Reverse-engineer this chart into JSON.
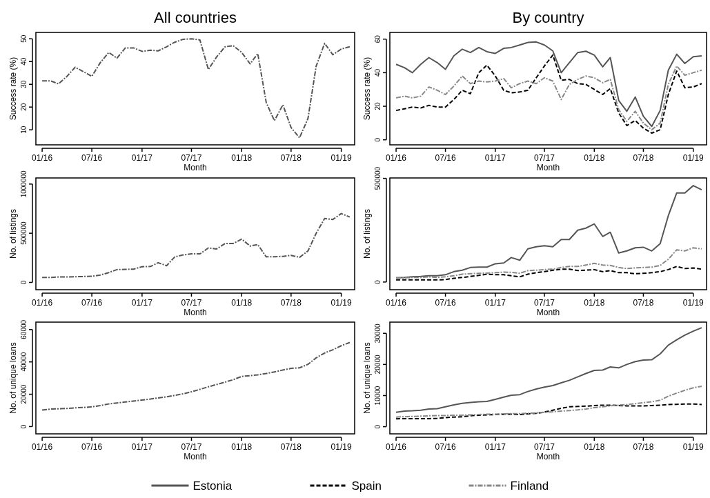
{
  "chart_data": [
    {
      "type": "line",
      "title": "All countries",
      "x": [
        "2016-01",
        "2016-02",
        "2016-03",
        "2016-04",
        "2016-05",
        "2016-06",
        "2016-07",
        "2016-08",
        "2016-09",
        "2016-10",
        "2016-11",
        "2016-12",
        "2017-01",
        "2017-02",
        "2017-03",
        "2017-04",
        "2017-05",
        "2017-06",
        "2017-07",
        "2017-08",
        "2017-09",
        "2017-10",
        "2017-11",
        "2017-12",
        "2018-01",
        "2018-02",
        "2018-03",
        "2018-04",
        "2018-05",
        "2018-06",
        "2018-07",
        "2018-08",
        "2018-09",
        "2018-10",
        "2018-11",
        "2018-12",
        "2019-01",
        "2019-02"
      ],
      "xlabel": "Month",
      "ylabel": "Success rate (%)",
      "xlim": [
        "2015-12-09",
        "2019-02-19"
      ],
      "ylim": [
        3.4,
        52.8
      ],
      "yticks": [
        10,
        20,
        30,
        40,
        50
      ],
      "xticks": [
        {
          "value": "2016-01",
          "label": "01/16"
        },
        {
          "value": "2016-07",
          "label": "07/16"
        },
        {
          "value": "2017-01",
          "label": "01/17"
        },
        {
          "value": "2017-07",
          "label": "07/17"
        },
        {
          "value": "2018-01",
          "label": "01/18"
        },
        {
          "value": "2018-07",
          "label": "07/18"
        },
        {
          "value": "2019-01",
          "label": "01/19"
        }
      ],
      "series": [
        {
          "color": "#555555",
          "line_style": "dashdot",
          "values": [
            31.5,
            31.5,
            30.2,
            33.5,
            37.5,
            35.5,
            33.5,
            39.5,
            44,
            41.5,
            46,
            46,
            44.5,
            45,
            44.7,
            46.5,
            48.5,
            49.8,
            50,
            49.5,
            36.5,
            42,
            46.5,
            47,
            44,
            39,
            43.5,
            22,
            14,
            21,
            11,
            6.5,
            15,
            38,
            48,
            43,
            45.5,
            46.5
          ]
        }
      ]
    },
    {
      "type": "line",
      "title": "By country",
      "x": [
        "2016-01",
        "2016-02",
        "2016-03",
        "2016-04",
        "2016-05",
        "2016-06",
        "2016-07",
        "2016-08",
        "2016-09",
        "2016-10",
        "2016-11",
        "2016-12",
        "2017-01",
        "2017-02",
        "2017-03",
        "2017-04",
        "2017-05",
        "2017-06",
        "2017-07",
        "2017-08",
        "2017-09",
        "2017-10",
        "2017-11",
        "2017-12",
        "2018-01",
        "2018-02",
        "2018-03",
        "2018-04",
        "2018-05",
        "2018-06",
        "2018-07",
        "2018-08",
        "2018-09",
        "2018-10",
        "2018-11",
        "2018-12",
        "2019-01",
        "2019-02"
      ],
      "xlabel": "Month",
      "ylabel": "Success rate (%)",
      "xlim": [
        "2015-12-09",
        "2019-02-19"
      ],
      "ylim": [
        -3,
        64
      ],
      "yticks": [
        0,
        20,
        40,
        60
      ],
      "xticks": [
        {
          "value": "2016-01",
          "label": "01/16"
        },
        {
          "value": "2016-07",
          "label": "07/16"
        },
        {
          "value": "2017-01",
          "label": "01/17"
        },
        {
          "value": "2017-07",
          "label": "07/17"
        },
        {
          "value": "2018-01",
          "label": "01/18"
        },
        {
          "value": "2018-07",
          "label": "07/18"
        },
        {
          "value": "2019-01",
          "label": "01/19"
        }
      ],
      "series": [
        {
          "color": "#555555",
          "line_style": "solid",
          "values": [
            45,
            43,
            40,
            45,
            49,
            46,
            42,
            50,
            54,
            52,
            55,
            52.5,
            51.5,
            54.5,
            55,
            56.5,
            58,
            58.3,
            56.5,
            53,
            40,
            46,
            52,
            52.8,
            50.5,
            43.5,
            49,
            23.5,
            17,
            25.5,
            14,
            8,
            17.5,
            41.5,
            51,
            45.5,
            49.5,
            50
          ]
        },
        {
          "color": "#000000",
          "line_style": "dashed",
          "values": [
            17.5,
            18.5,
            19.5,
            19,
            20.5,
            19.5,
            19.5,
            24,
            29.5,
            27.5,
            40,
            44.5,
            38,
            29.5,
            28,
            28.5,
            29.5,
            37,
            44,
            50.5,
            35.5,
            36,
            33.5,
            33,
            30,
            27,
            30.5,
            16,
            8.5,
            11.5,
            7,
            4,
            6,
            27,
            41,
            31,
            31.5,
            33.5
          ]
        },
        {
          "color": "#888888",
          "line_style": "dashdot",
          "values": [
            25,
            26,
            25,
            26,
            31.5,
            29.5,
            27,
            32,
            38,
            33.5,
            35,
            34.5,
            35,
            36.5,
            31,
            33.5,
            35,
            33.5,
            37,
            35,
            24,
            33,
            36,
            38,
            37,
            34,
            36,
            18,
            11,
            17,
            10,
            6,
            10,
            33,
            44,
            38.5,
            40,
            41.5
          ]
        }
      ]
    },
    {
      "type": "line",
      "x": [
        "2016-01",
        "2016-02",
        "2016-03",
        "2016-04",
        "2016-05",
        "2016-06",
        "2016-07",
        "2016-08",
        "2016-09",
        "2016-10",
        "2016-11",
        "2016-12",
        "2017-01",
        "2017-02",
        "2017-03",
        "2017-04",
        "2017-05",
        "2017-06",
        "2017-07",
        "2017-08",
        "2017-09",
        "2017-10",
        "2017-11",
        "2017-12",
        "2018-01",
        "2018-02",
        "2018-03",
        "2018-04",
        "2018-05",
        "2018-06",
        "2018-07",
        "2018-08",
        "2018-09",
        "2018-10",
        "2018-11",
        "2018-12",
        "2019-01",
        "2019-02"
      ],
      "xlabel": "Month",
      "ylabel": "No. of listings",
      "xlim": [
        "2015-12-09",
        "2019-02-19"
      ],
      "ylim": [
        -74000,
        1062000
      ],
      "yticks": [
        0,
        500000,
        1000000
      ],
      "xticks": [
        {
          "value": "2016-01",
          "label": "01/16"
        },
        {
          "value": "2016-07",
          "label": "07/16"
        },
        {
          "value": "2017-01",
          "label": "01/17"
        },
        {
          "value": "2017-07",
          "label": "07/17"
        },
        {
          "value": "2018-01",
          "label": "01/18"
        },
        {
          "value": "2018-07",
          "label": "07/18"
        },
        {
          "value": "2019-01",
          "label": "01/19"
        }
      ],
      "series": [
        {
          "color": "#555555",
          "line_style": "dashdot",
          "values": [
            50000,
            50000,
            55000,
            55000,
            58000,
            60000,
            62000,
            75000,
            100000,
            130000,
            133000,
            135000,
            160000,
            162000,
            200000,
            170000,
            260000,
            280000,
            290000,
            290000,
            350000,
            340000,
            395000,
            395000,
            440000,
            370000,
            385000,
            260000,
            260000,
            265000,
            275000,
            255000,
            320000,
            500000,
            650000,
            640000,
            700000,
            665000
          ]
        }
      ]
    },
    {
      "type": "line",
      "x": [
        "2016-01",
        "2016-02",
        "2016-03",
        "2016-04",
        "2016-05",
        "2016-06",
        "2016-07",
        "2016-08",
        "2016-09",
        "2016-10",
        "2016-11",
        "2016-12",
        "2017-01",
        "2017-02",
        "2017-03",
        "2017-04",
        "2017-05",
        "2017-06",
        "2017-07",
        "2017-08",
        "2017-09",
        "2017-10",
        "2017-11",
        "2017-12",
        "2018-01",
        "2018-02",
        "2018-03",
        "2018-04",
        "2018-05",
        "2018-06",
        "2018-07",
        "2018-08",
        "2018-09",
        "2018-10",
        "2018-11",
        "2018-12",
        "2019-01",
        "2019-02"
      ],
      "xlabel": "Month",
      "ylabel": "No. of listings",
      "xlim": [
        "2015-12-09",
        "2019-02-19"
      ],
      "ylim": [
        -37000,
        502000
      ],
      "yticks": [
        0,
        500000
      ],
      "xticks": [
        {
          "value": "2016-01",
          "label": "01/16"
        },
        {
          "value": "2016-07",
          "label": "07/16"
        },
        {
          "value": "2017-01",
          "label": "01/17"
        },
        {
          "value": "2017-07",
          "label": "07/17"
        },
        {
          "value": "2018-01",
          "label": "01/18"
        },
        {
          "value": "2018-07",
          "label": "07/18"
        },
        {
          "value": "2019-01",
          "label": "01/19"
        }
      ],
      "series": [
        {
          "color": "#555555",
          "line_style": "solid",
          "values": [
            20000,
            22000,
            25000,
            27000,
            30000,
            30000,
            35000,
            50000,
            57000,
            70000,
            72000,
            72000,
            88000,
            92000,
            118000,
            105000,
            160000,
            170000,
            175000,
            170000,
            205000,
            205000,
            250000,
            260000,
            280000,
            220000,
            240000,
            140000,
            150000,
            165000,
            168000,
            150000,
            185000,
            320000,
            430000,
            430000,
            465000,
            445000
          ]
        },
        {
          "color": "#000000",
          "line_style": "dashed",
          "values": [
            10000,
            10000,
            10000,
            10000,
            10000,
            10000,
            12000,
            18000,
            22000,
            27000,
            32000,
            38000,
            35000,
            35000,
            30000,
            25000,
            38000,
            45000,
            50000,
            57000,
            62000,
            62000,
            55000,
            57000,
            60000,
            50000,
            55000,
            45000,
            45000,
            40000,
            42000,
            45000,
            50000,
            60000,
            75000,
            65000,
            68000,
            62000
          ]
        },
        {
          "color": "#888888",
          "line_style": "dashdot",
          "values": [
            20000,
            20000,
            22000,
            22000,
            25000,
            22000,
            25000,
            30000,
            38000,
            40000,
            42000,
            43000,
            45000,
            48000,
            47000,
            42000,
            55000,
            57000,
            60000,
            62000,
            70000,
            75000,
            75000,
            82000,
            90000,
            82000,
            80000,
            70000,
            65000,
            68000,
            70000,
            72000,
            80000,
            110000,
            155000,
            150000,
            165000,
            160000
          ]
        }
      ]
    },
    {
      "type": "line",
      "x": [
        "2016-01",
        "2016-02",
        "2016-03",
        "2016-04",
        "2016-05",
        "2016-06",
        "2016-07",
        "2016-08",
        "2016-09",
        "2016-10",
        "2016-11",
        "2016-12",
        "2017-01",
        "2017-02",
        "2017-03",
        "2017-04",
        "2017-05",
        "2017-06",
        "2017-07",
        "2017-08",
        "2017-09",
        "2017-10",
        "2017-11",
        "2017-12",
        "2018-01",
        "2018-02",
        "2018-03",
        "2018-04",
        "2018-05",
        "2018-06",
        "2018-07",
        "2018-08",
        "2018-09",
        "2018-10",
        "2018-11",
        "2018-12",
        "2019-01",
        "2019-02"
      ],
      "xlabel": "Month",
      "ylabel": "No. of unique loans",
      "xlim": [
        "2015-12-09",
        "2019-02-19"
      ],
      "ylim": [
        -4500,
        64600
      ],
      "yticks": [
        0,
        20000,
        40000,
        60000
      ],
      "xticks": [
        {
          "value": "2016-01",
          "label": "01/16"
        },
        {
          "value": "2016-07",
          "label": "07/16"
        },
        {
          "value": "2017-01",
          "label": "01/17"
        },
        {
          "value": "2017-07",
          "label": "07/17"
        },
        {
          "value": "2018-01",
          "label": "01/18"
        },
        {
          "value": "2018-07",
          "label": "07/18"
        },
        {
          "value": "2019-01",
          "label": "01/19"
        }
      ],
      "series": [
        {
          "color": "#555555",
          "line_style": "dashdot",
          "values": [
            10200,
            10800,
            11000,
            11200,
            11600,
            11800,
            12200,
            13000,
            14000,
            14600,
            15200,
            15800,
            16400,
            17000,
            17700,
            18400,
            19300,
            20300,
            21500,
            23000,
            24600,
            26000,
            27500,
            29000,
            31000,
            31500,
            32000,
            32800,
            33800,
            35000,
            36000,
            36300,
            38500,
            42500,
            45500,
            47500,
            50000,
            52000
          ]
        }
      ]
    },
    {
      "type": "line",
      "x": [
        "2016-01",
        "2016-02",
        "2016-03",
        "2016-04",
        "2016-05",
        "2016-06",
        "2016-07",
        "2016-08",
        "2016-09",
        "2016-10",
        "2016-11",
        "2016-12",
        "2017-01",
        "2017-02",
        "2017-03",
        "2017-04",
        "2017-05",
        "2017-06",
        "2017-07",
        "2017-08",
        "2017-09",
        "2017-10",
        "2017-11",
        "2017-12",
        "2018-01",
        "2018-02",
        "2018-03",
        "2018-04",
        "2018-05",
        "2018-06",
        "2018-07",
        "2018-08",
        "2018-09",
        "2018-10",
        "2018-11",
        "2018-12",
        "2019-01",
        "2019-02"
      ],
      "xlabel": "Month",
      "ylabel": "No. of unique loans",
      "xlim": [
        "2015-12-09",
        "2019-02-19"
      ],
      "ylim": [
        -2300,
        33600
      ],
      "yticks": [
        0,
        10000,
        20000,
        30000
      ],
      "legend": "bottom",
      "xticks": [
        {
          "value": "2016-01",
          "label": "01/16"
        },
        {
          "value": "2016-07",
          "label": "07/16"
        },
        {
          "value": "2017-01",
          "label": "01/17"
        },
        {
          "value": "2017-07",
          "label": "07/17"
        },
        {
          "value": "2018-01",
          "label": "01/18"
        },
        {
          "value": "2018-07",
          "label": "07/18"
        },
        {
          "value": "2019-01",
          "label": "01/19"
        }
      ],
      "series": [
        {
          "name": "Estonia",
          "color": "#555555",
          "line_style": "solid",
          "values": [
            4600,
            5000,
            5100,
            5300,
            5700,
            5800,
            6400,
            7000,
            7500,
            7800,
            8000,
            8100,
            8800,
            9500,
            10100,
            10300,
            11300,
            12100,
            12700,
            13200,
            14100,
            14900,
            16000,
            17100,
            18100,
            18200,
            19200,
            18900,
            20000,
            20900,
            21400,
            21500,
            23400,
            26200,
            27900,
            29400,
            30700,
            31800
          ]
        },
        {
          "name": "Spain",
          "color": "#000000",
          "line_style": "dashed",
          "values": [
            2500,
            2600,
            2600,
            2600,
            2600,
            2700,
            2900,
            3100,
            3200,
            3500,
            3700,
            3800,
            3900,
            4000,
            4000,
            3900,
            4100,
            4300,
            4700,
            5300,
            5900,
            6400,
            6500,
            6600,
            6800,
            6900,
            6900,
            6800,
            6700,
            6700,
            6700,
            6800,
            6900,
            7100,
            7200,
            7300,
            7300,
            7100
          ]
        },
        {
          "name": "Finland",
          "color": "#888888",
          "line_style": "dashdot",
          "values": [
            3100,
            3200,
            3300,
            3400,
            3500,
            3600,
            3600,
            3700,
            3700,
            3800,
            3900,
            4000,
            4000,
            4100,
            4200,
            4200,
            4300,
            4400,
            4600,
            4800,
            5000,
            5200,
            5400,
            5700,
            6100,
            6400,
            6700,
            6900,
            7100,
            7400,
            7700,
            8000,
            8500,
            9800,
            10800,
            11700,
            12500,
            13000
          ]
        }
      ]
    }
  ]
}
